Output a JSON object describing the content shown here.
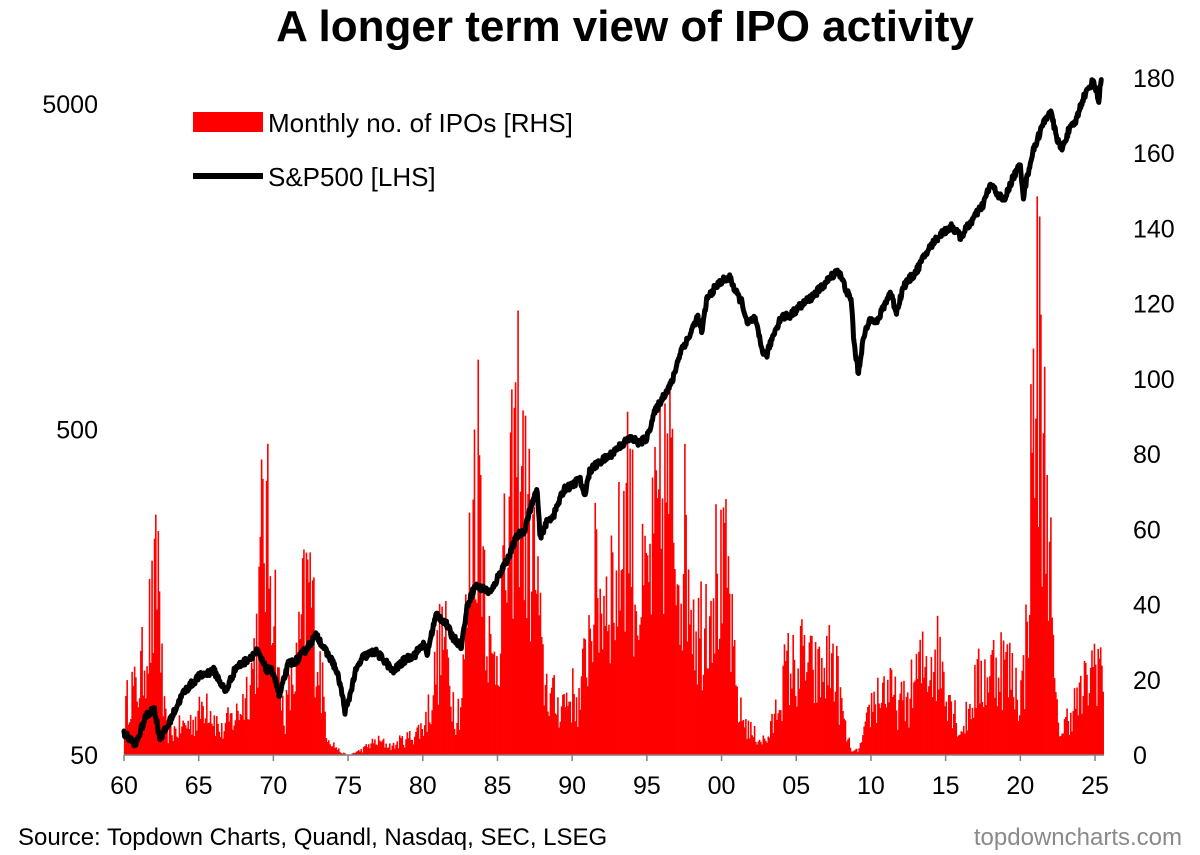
{
  "chart_data": {
    "type": "bar+line",
    "title": "A longer term view of IPO activity",
    "source": "Source: Topdown Charts, Quandl, Nasdaq, SEC, LSEG",
    "brand": "topdowncharts.com",
    "x_range": [
      1960,
      2025.6
    ],
    "x_tick_values": [
      1960,
      1965,
      1970,
      1975,
      1980,
      1985,
      1990,
      1995,
      2000,
      2005,
      2010,
      2015,
      2020,
      2025
    ],
    "x_tick_labels": [
      "60",
      "65",
      "70",
      "75",
      "80",
      "85",
      "90",
      "95",
      "00",
      "05",
      "10",
      "15",
      "20",
      "25"
    ],
    "left_axis": {
      "scale": "log",
      "range": [
        50,
        6000
      ],
      "ticks": [
        50,
        500,
        5000
      ],
      "tick_labels": [
        "50",
        "500",
        "5000"
      ]
    },
    "right_axis": {
      "scale": "linear",
      "range": [
        0,
        180
      ],
      "ticks": [
        0,
        20,
        40,
        60,
        80,
        100,
        120,
        140,
        160,
        180
      ],
      "tick_labels": [
        "0",
        "20",
        "40",
        "60",
        "80",
        "100",
        "120",
        "140",
        "160",
        "180"
      ]
    },
    "series": [
      {
        "name": "Monthly no. of IPOs [RHS]",
        "type": "bar",
        "axis": "right",
        "color": "#ff0000",
        "envelope": [
          [
            1960.0,
            12
          ],
          [
            1960.4,
            25
          ],
          [
            1960.8,
            22
          ],
          [
            1961.2,
            31
          ],
          [
            1961.6,
            45
          ],
          [
            1962.0,
            52
          ],
          [
            1962.3,
            73
          ],
          [
            1962.6,
            18
          ],
          [
            1962.9,
            8
          ],
          [
            1963.5,
            9
          ],
          [
            1964.5,
            12
          ],
          [
            1965.0,
            14
          ],
          [
            1965.5,
            22
          ],
          [
            1966.0,
            14
          ],
          [
            1966.5,
            8
          ],
          [
            1967.0,
            12
          ],
          [
            1967.5,
            14
          ],
          [
            1968.0,
            20
          ],
          [
            1968.5,
            28
          ],
          [
            1969.0,
            48
          ],
          [
            1969.3,
            87
          ],
          [
            1969.6,
            77
          ],
          [
            1970.0,
            66
          ],
          [
            1970.4,
            22
          ],
          [
            1970.8,
            15
          ],
          [
            1971.2,
            25
          ],
          [
            1971.6,
            32
          ],
          [
            1972.0,
            52
          ],
          [
            1972.4,
            64
          ],
          [
            1972.8,
            43
          ],
          [
            1973.2,
            28
          ],
          [
            1973.6,
            8
          ],
          [
            1974.0,
            4
          ],
          [
            1974.5,
            1
          ],
          [
            1975.0,
            0
          ],
          [
            1975.5,
            1
          ],
          [
            1976.0,
            2
          ],
          [
            1976.5,
            4
          ],
          [
            1977.0,
            5
          ],
          [
            1977.5,
            4
          ],
          [
            1978.0,
            3
          ],
          [
            1978.5,
            5
          ],
          [
            1979.0,
            6
          ],
          [
            1979.5,
            8
          ],
          [
            1980.0,
            10
          ],
          [
            1980.5,
            18
          ],
          [
            1981.0,
            35
          ],
          [
            1981.4,
            44
          ],
          [
            1981.8,
            28
          ],
          [
            1982.2,
            15
          ],
          [
            1982.6,
            20
          ],
          [
            1983.0,
            55
          ],
          [
            1983.5,
            103
          ],
          [
            1983.8,
            108
          ],
          [
            1984.2,
            60
          ],
          [
            1984.6,
            30
          ],
          [
            1985.0,
            40
          ],
          [
            1985.4,
            62
          ],
          [
            1985.8,
            75
          ],
          [
            1986.2,
            110
          ],
          [
            1986.5,
            120
          ],
          [
            1986.8,
            90
          ],
          [
            1987.2,
            75
          ],
          [
            1987.6,
            65
          ],
          [
            1988.0,
            30
          ],
          [
            1988.5,
            22
          ],
          [
            1989.0,
            18
          ],
          [
            1989.5,
            20
          ],
          [
            1990.0,
            22
          ],
          [
            1990.5,
            18
          ],
          [
            1991.0,
            40
          ],
          [
            1991.5,
            62
          ],
          [
            1992.0,
            55
          ],
          [
            1992.5,
            65
          ],
          [
            1993.0,
            60
          ],
          [
            1993.4,
            85
          ],
          [
            1993.8,
            102
          ],
          [
            1994.2,
            62
          ],
          [
            1994.6,
            55
          ],
          [
            1995.0,
            60
          ],
          [
            1995.4,
            72
          ],
          [
            1995.8,
            85
          ],
          [
            1996.2,
            95
          ],
          [
            1996.5,
            100
          ],
          [
            1996.8,
            82
          ],
          [
            1997.2,
            72
          ],
          [
            1997.6,
            78
          ],
          [
            1998.0,
            60
          ],
          [
            1998.4,
            45
          ],
          [
            1998.8,
            50
          ],
          [
            1999.2,
            62
          ],
          [
            1999.6,
            65
          ],
          [
            2000.0,
            60
          ],
          [
            2000.4,
            65
          ],
          [
            2000.8,
            32
          ],
          [
            2001.2,
            15
          ],
          [
            2001.6,
            12
          ],
          [
            2002.0,
            8
          ],
          [
            2002.5,
            6
          ],
          [
            2003.0,
            5
          ],
          [
            2003.5,
            12
          ],
          [
            2004.0,
            25
          ],
          [
            2004.5,
            32
          ],
          [
            2005.0,
            30
          ],
          [
            2005.5,
            36
          ],
          [
            2006.0,
            30
          ],
          [
            2006.5,
            28
          ],
          [
            2007.0,
            32
          ],
          [
            2007.5,
            35
          ],
          [
            2008.0,
            18
          ],
          [
            2008.4,
            6
          ],
          [
            2008.8,
            1
          ],
          [
            2009.2,
            2
          ],
          [
            2009.6,
            8
          ],
          [
            2010.0,
            18
          ],
          [
            2010.5,
            22
          ],
          [
            2011.0,
            25
          ],
          [
            2011.5,
            20
          ],
          [
            2012.0,
            18
          ],
          [
            2012.5,
            20
          ],
          [
            2013.0,
            28
          ],
          [
            2013.5,
            32
          ],
          [
            2014.0,
            35
          ],
          [
            2014.5,
            36
          ],
          [
            2015.0,
            28
          ],
          [
            2015.5,
            18
          ],
          [
            2016.0,
            8
          ],
          [
            2016.5,
            15
          ],
          [
            2017.0,
            25
          ],
          [
            2017.5,
            28
          ],
          [
            2018.0,
            30
          ],
          [
            2018.5,
            35
          ],
          [
            2019.0,
            32
          ],
          [
            2019.5,
            28
          ],
          [
            2020.0,
            22
          ],
          [
            2020.3,
            30
          ],
          [
            2020.6,
            75
          ],
          [
            2020.9,
            130
          ],
          [
            2021.1,
            148
          ],
          [
            2021.3,
            140
          ],
          [
            2021.5,
            110
          ],
          [
            2021.7,
            102
          ],
          [
            2021.9,
            100
          ],
          [
            2022.1,
            45
          ],
          [
            2022.4,
            15
          ],
          [
            2022.8,
            8
          ],
          [
            2023.2,
            14
          ],
          [
            2023.6,
            18
          ],
          [
            2024.0,
            20
          ],
          [
            2024.4,
            25
          ],
          [
            2024.8,
            30
          ],
          [
            2025.0,
            37
          ],
          [
            2025.3,
            35
          ],
          [
            2025.5,
            28
          ]
        ]
      },
      {
        "name": "S&P500 [LHS]",
        "type": "line",
        "axis": "left",
        "color": "#000000",
        "points": [
          [
            1960.0,
            58
          ],
          [
            1960.8,
            54
          ],
          [
            1961.5,
            66
          ],
          [
            1962.0,
            70
          ],
          [
            1962.4,
            56
          ],
          [
            1962.9,
            61
          ],
          [
            1963.5,
            70
          ],
          [
            1964.0,
            78
          ],
          [
            1965.0,
            87
          ],
          [
            1966.0,
            91
          ],
          [
            1966.8,
            78
          ],
          [
            1967.5,
            93
          ],
          [
            1968.0,
            96
          ],
          [
            1968.9,
            104
          ],
          [
            1969.5,
            92
          ],
          [
            1970.0,
            90
          ],
          [
            1970.4,
            75
          ],
          [
            1971.0,
            95
          ],
          [
            1971.6,
            98
          ],
          [
            1972.0,
            103
          ],
          [
            1972.9,
            117
          ],
          [
            1973.5,
            104
          ],
          [
            1974.0,
            96
          ],
          [
            1974.4,
            85
          ],
          [
            1974.8,
            68
          ],
          [
            1975.0,
            72
          ],
          [
            1975.5,
            90
          ],
          [
            1976.0,
            100
          ],
          [
            1976.8,
            104
          ],
          [
            1977.5,
            97
          ],
          [
            1978.0,
            90
          ],
          [
            1978.8,
            98
          ],
          [
            1979.5,
            102
          ],
          [
            1980.0,
            110
          ],
          [
            1980.3,
            102
          ],
          [
            1980.9,
            135
          ],
          [
            1981.5,
            128
          ],
          [
            1982.0,
            115
          ],
          [
            1982.6,
            108
          ],
          [
            1983.0,
            145
          ],
          [
            1983.5,
            165
          ],
          [
            1984.0,
            162
          ],
          [
            1984.6,
            158
          ],
          [
            1985.0,
            175
          ],
          [
            1985.8,
            205
          ],
          [
            1986.3,
            235
          ],
          [
            1986.8,
            245
          ],
          [
            1987.3,
            295
          ],
          [
            1987.65,
            325
          ],
          [
            1987.85,
            230
          ],
          [
            1988.2,
            255
          ],
          [
            1988.8,
            275
          ],
          [
            1989.5,
            330
          ],
          [
            1990.0,
            335
          ],
          [
            1990.5,
            355
          ],
          [
            1990.8,
            310
          ],
          [
            1991.2,
            375
          ],
          [
            1991.8,
            395
          ],
          [
            1992.5,
            415
          ],
          [
            1993.2,
            445
          ],
          [
            1993.9,
            470
          ],
          [
            1994.5,
            455
          ],
          [
            1995.0,
            470
          ],
          [
            1995.5,
            560
          ],
          [
            1996.0,
            620
          ],
          [
            1996.7,
            700
          ],
          [
            1997.3,
            880
          ],
          [
            1997.8,
            955
          ],
          [
            1998.4,
            1110
          ],
          [
            1998.7,
            990
          ],
          [
            1999.0,
            1250
          ],
          [
            1999.5,
            1350
          ],
          [
            2000.0,
            1430
          ],
          [
            2000.6,
            1460
          ],
          [
            2000.9,
            1330
          ],
          [
            2001.4,
            1220
          ],
          [
            2001.7,
            1050
          ],
          [
            2002.2,
            1100
          ],
          [
            2002.7,
            880
          ],
          [
            2003.0,
            840
          ],
          [
            2003.5,
            985
          ],
          [
            2004.0,
            1110
          ],
          [
            2004.6,
            1120
          ],
          [
            2005.2,
            1190
          ],
          [
            2006.0,
            1270
          ],
          [
            2006.8,
            1380
          ],
          [
            2007.5,
            1500
          ],
          [
            2007.8,
            1540
          ],
          [
            2008.4,
            1320
          ],
          [
            2008.7,
            1230
          ],
          [
            2008.85,
            930
          ],
          [
            2009.15,
            740
          ],
          [
            2009.5,
            950
          ],
          [
            2010.0,
            1110
          ],
          [
            2010.4,
            1060
          ],
          [
            2011.3,
            1320
          ],
          [
            2011.7,
            1140
          ],
          [
            2012.2,
            1380
          ],
          [
            2013.0,
            1520
          ],
          [
            2013.9,
            1800
          ],
          [
            2014.6,
            1980
          ],
          [
            2015.4,
            2100
          ],
          [
            2016.0,
            1950
          ],
          [
            2016.8,
            2200
          ],
          [
            2017.5,
            2450
          ],
          [
            2018.0,
            2820
          ],
          [
            2018.9,
            2500
          ],
          [
            2019.5,
            2960
          ],
          [
            2020.0,
            3250
          ],
          [
            2020.2,
            2580
          ],
          [
            2020.8,
            3500
          ],
          [
            2021.5,
            4300
          ],
          [
            2021.99,
            4770
          ],
          [
            2022.4,
            4000
          ],
          [
            2022.75,
            3580
          ],
          [
            2023.2,
            4100
          ],
          [
            2023.7,
            4400
          ],
          [
            2024.2,
            5200
          ],
          [
            2024.9,
            5900
          ],
          [
            2025.25,
            5100
          ],
          [
            2025.45,
            6150
          ]
        ]
      }
    ]
  }
}
